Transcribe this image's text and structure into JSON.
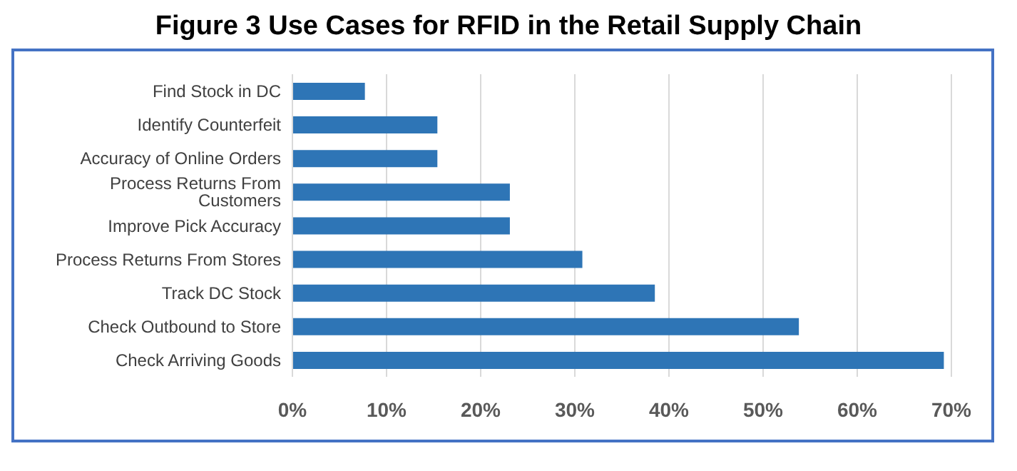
{
  "chart_data": {
    "type": "bar",
    "orientation": "horizontal",
    "title": "Figure 3 Use Cases for RFID in the Retail Supply Chain",
    "categories": [
      "Find Stock in DC",
      "Identify Counterfeit",
      "Accuracy of Online Orders",
      "Process Returns From Customers",
      "Improve Pick Accuracy",
      "Process Returns From Stores",
      "Track DC Stock",
      "Check Outbound to Store",
      "Check Arriving Goods"
    ],
    "values": [
      7.7,
      15.4,
      15.4,
      23.1,
      23.1,
      30.8,
      38.5,
      53.8,
      69.2
    ],
    "color": "#2e75b6",
    "xlim": [
      0,
      70
    ],
    "xticks": [
      {
        "value": 0,
        "label": "0%"
      },
      {
        "value": 10,
        "label": "10%"
      },
      {
        "value": 20,
        "label": "20%"
      },
      {
        "value": 30,
        "label": "30%"
      },
      {
        "value": 40,
        "label": "40%"
      },
      {
        "value": 50,
        "label": "50%"
      },
      {
        "value": 60,
        "label": "60%"
      },
      {
        "value": 70,
        "label": "70%"
      }
    ],
    "grid": "x",
    "legend": false
  }
}
